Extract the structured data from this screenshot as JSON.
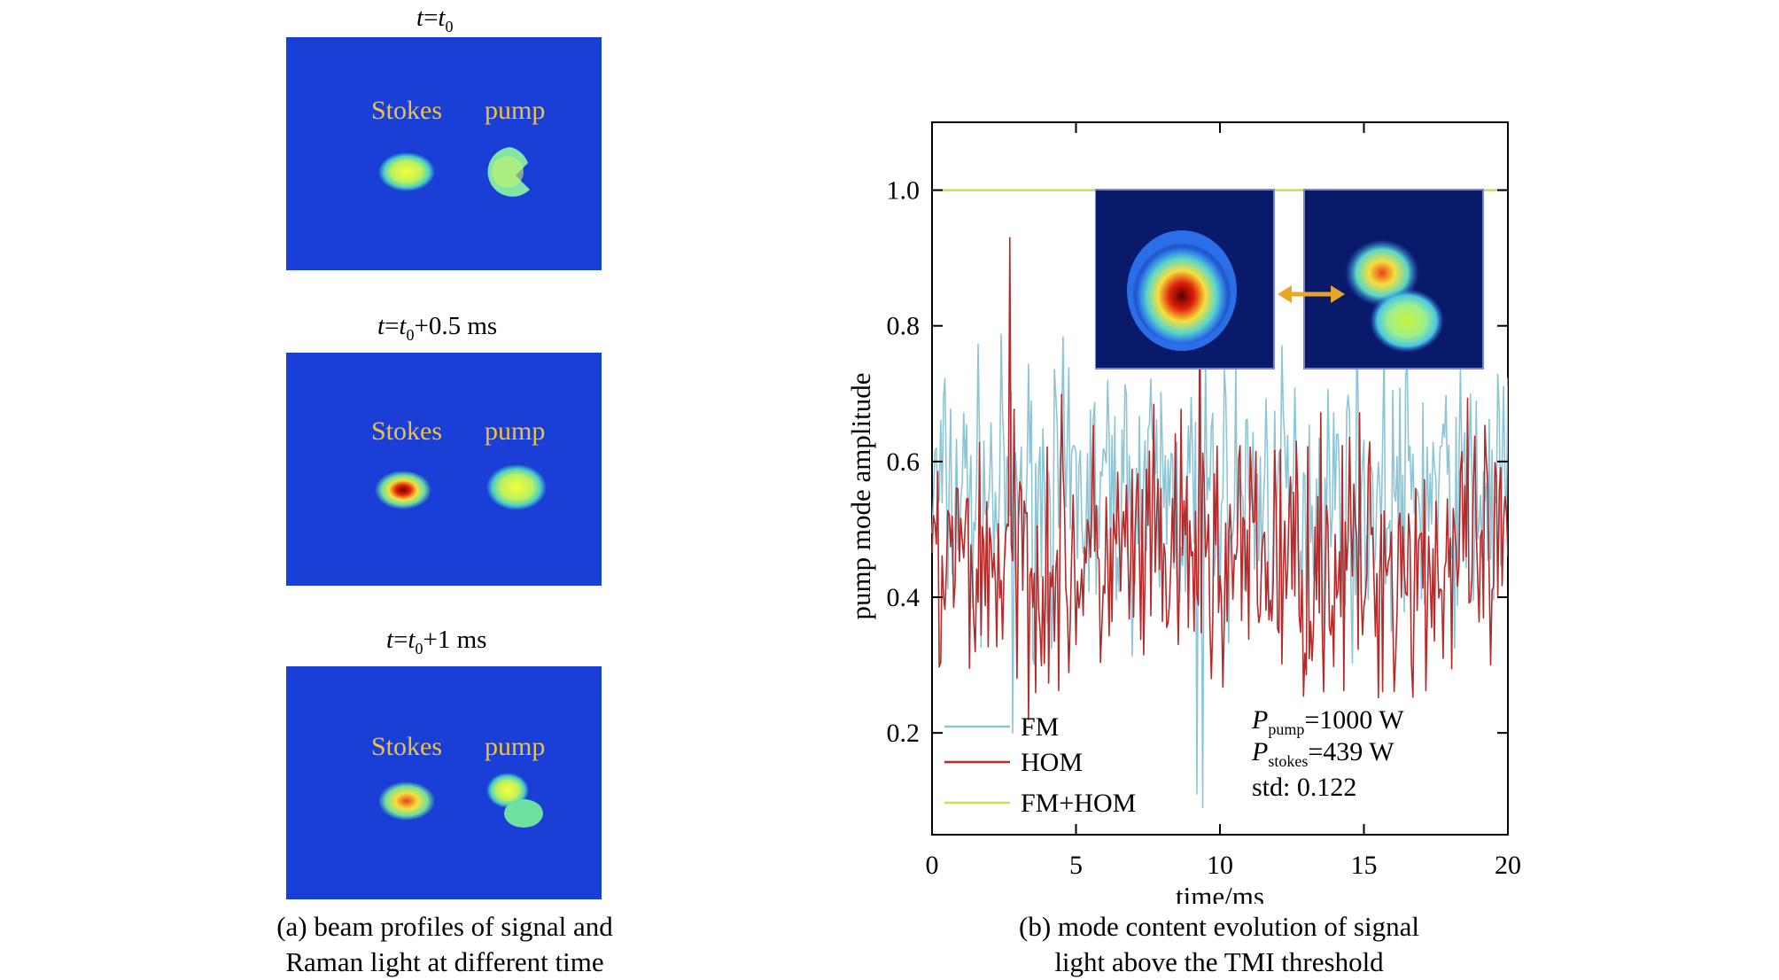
{
  "panel_a": {
    "frames": [
      {
        "time_label": "t=t0",
        "stokes_label": "Stokes",
        "pump_label": "pump"
      },
      {
        "time_label": "t=t0+0.5 ms",
        "stokes_label": "Stokes",
        "pump_label": "pump"
      },
      {
        "time_label": "t=t0+1 ms",
        "stokes_label": "Stokes",
        "pump_label": "pump"
      }
    ],
    "caption_line1": "(a) beam profiles of signal and",
    "caption_line2": "Raman light at different time",
    "label_color": "#f0c23c",
    "background_color": "#1a3fd6"
  },
  "panel_b": {
    "caption_line1": "(b) mode content evolution of signal",
    "caption_line2": "light above the TMI threshold",
    "annotations": {
      "p_pump": "=1000 W",
      "p_stokes": "=439 W",
      "std": "std: 0.122"
    }
  },
  "chart_data": {
    "type": "line",
    "xlabel": "time/ms",
    "ylabel": "pump mode amplitude",
    "xlim": [
      0,
      20
    ],
    "ylim": [
      0.05,
      1.1
    ],
    "xticks": [
      0,
      5,
      10,
      15,
      20
    ],
    "yticks": [
      0.2,
      0.4,
      0.6,
      0.8,
      1.0
    ],
    "ytick_labels": [
      "0.2",
      "0.4",
      "0.6",
      "0.8",
      "1.0"
    ],
    "grid": false,
    "legend_position": "bottom-left",
    "series": [
      {
        "name": "FM",
        "color": "#8cc6d6",
        "mean": 0.55,
        "spread": 0.12,
        "extremes": [
          {
            "x": 2.8,
            "y": 0.2
          },
          {
            "x": 9.2,
            "y": 0.11
          },
          {
            "x": 9.4,
            "y": 0.09
          }
        ],
        "count": 400
      },
      {
        "name": "HOM",
        "color": "#b52a2a",
        "mean": 0.45,
        "spread": 0.12,
        "extremes": [
          {
            "x": 2.7,
            "y": 0.93
          },
          {
            "x": 9.3,
            "y": 0.89
          }
        ],
        "count": 400
      },
      {
        "name": "FM+HOM",
        "color": "#c8e04a",
        "constant": 1.0
      }
    ]
  }
}
